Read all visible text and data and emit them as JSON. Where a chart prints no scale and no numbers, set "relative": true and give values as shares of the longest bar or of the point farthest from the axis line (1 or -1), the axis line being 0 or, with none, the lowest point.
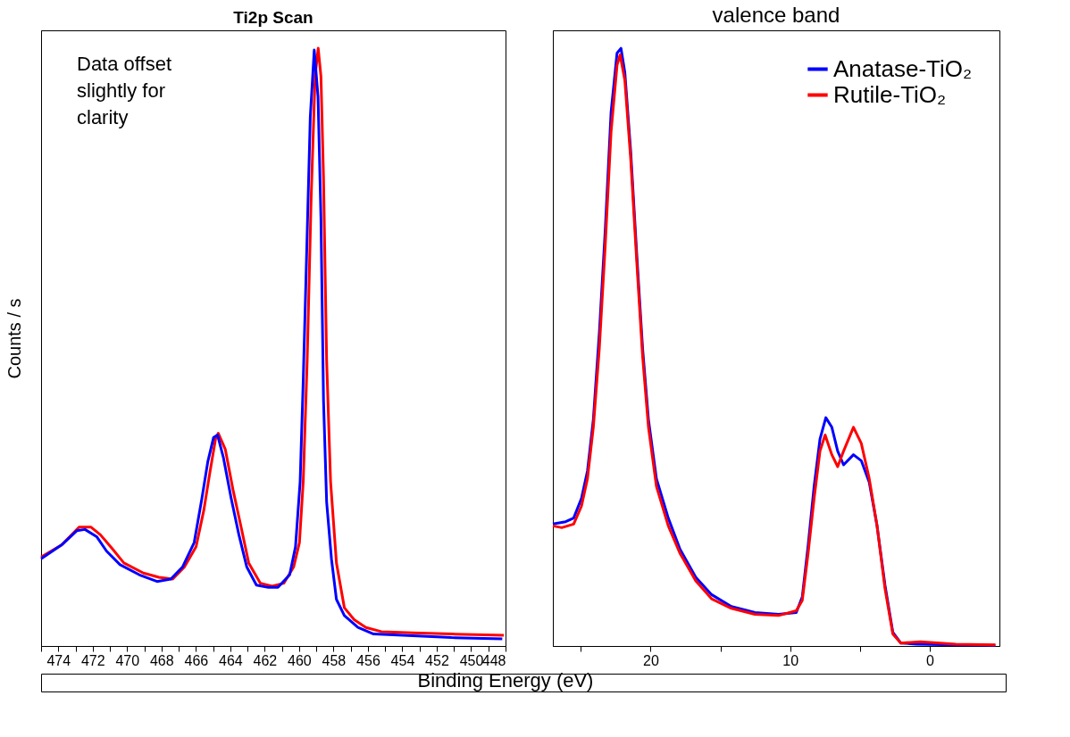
{
  "chart_data": [
    {
      "type": "line",
      "title": "Ti2p Scan",
      "ylabel": "Counts / s",
      "xlabel": "Binding Energy (eV)",
      "relative": true,
      "tick_labels": "x",
      "legend": false,
      "annotations": [
        "Data offset slightly for clarity"
      ],
      "xlim": [
        475,
        448
      ],
      "xticks": [
        {
          "value": 475,
          "label": null
        },
        474,
        {
          "value": 473,
          "label": null
        },
        472,
        {
          "value": 471,
          "label": null
        },
        470,
        {
          "value": 469,
          "label": null
        },
        468,
        {
          "value": 467,
          "label": null
        },
        466,
        {
          "value": 465,
          "label": null
        },
        464,
        {
          "value": 463,
          "label": null
        },
        462,
        {
          "value": 461,
          "label": null
        },
        460,
        {
          "value": 459,
          "label": null
        },
        458,
        {
          "value": 457,
          "label": null
        },
        456,
        {
          "value": 455,
          "label": null
        },
        454,
        {
          "value": 453,
          "label": null
        },
        452,
        {
          "value": 451,
          "label": null
        },
        450,
        {
          "value": 449,
          "label": null
        },
        448
      ],
      "series": [
        {
          "color": "#ff0000",
          "x": [
            475.0,
            473.81,
            472.79,
            472.11,
            471.55,
            470.87,
            470.19,
            469.05,
            468.15,
            467.35,
            466.67,
            465.99,
            465.54,
            465.2,
            464.86,
            464.7,
            464.29,
            463.84,
            463.38,
            462.93,
            462.25,
            461.57,
            460.89,
            460.32,
            459.98,
            459.76,
            459.53,
            459.3,
            459.07,
            458.89,
            458.73,
            458.58,
            458.4,
            458.17,
            457.83,
            457.37,
            456.8,
            456.12,
            455.22,
            453.41,
            451.14,
            448.1
          ],
          "values": [
            0.149,
            0.169,
            0.199,
            0.199,
            0.186,
            0.163,
            0.139,
            0.122,
            0.115,
            0.112,
            0.132,
            0.166,
            0.227,
            0.288,
            0.346,
            0.356,
            0.329,
            0.261,
            0.2,
            0.139,
            0.105,
            0.1,
            0.105,
            0.132,
            0.173,
            0.275,
            0.478,
            0.749,
            0.953,
            1.0,
            0.953,
            0.783,
            0.478,
            0.275,
            0.139,
            0.064,
            0.044,
            0.031,
            0.024,
            0.022,
            0.02,
            0.018
          ]
        },
        {
          "color": "#0000ff",
          "x": [
            475.0,
            473.81,
            472.91,
            472.45,
            471.77,
            471.2,
            470.41,
            469.28,
            468.26,
            467.46,
            466.78,
            466.1,
            465.65,
            465.31,
            464.97,
            464.74,
            464.4,
            463.95,
            463.5,
            463.04,
            462.48,
            461.79,
            461.23,
            460.55,
            460.21,
            459.94,
            459.76,
            459.57,
            459.35,
            459.12,
            458.9,
            458.73,
            458.58,
            458.4,
            458.12,
            457.83,
            457.37,
            456.58,
            455.67,
            453.41,
            451.14,
            448.19
          ],
          "values": [
            0.146,
            0.169,
            0.193,
            0.195,
            0.183,
            0.159,
            0.136,
            0.119,
            0.108,
            0.112,
            0.132,
            0.173,
            0.247,
            0.308,
            0.349,
            0.353,
            0.315,
            0.247,
            0.186,
            0.132,
            0.102,
            0.098,
            0.098,
            0.119,
            0.166,
            0.275,
            0.444,
            0.647,
            0.885,
            0.997,
            0.919,
            0.715,
            0.41,
            0.241,
            0.146,
            0.078,
            0.051,
            0.031,
            0.02,
            0.017,
            0.014,
            0.012
          ]
        }
      ]
    },
    {
      "type": "line",
      "title": "valence band",
      "relative": true,
      "tick_labels": "x",
      "legend": "top right",
      "xlim": [
        27,
        -5
      ],
      "xticks": [
        {
          "value": 25,
          "label": null
        },
        20,
        {
          "value": 15,
          "label": null
        },
        10,
        {
          "value": 5,
          "label": null
        },
        0
      ],
      "series": [
        {
          "name": "Anatase-TiO₂",
          "color": "#0000ff",
          "x": [
            27.0,
            26.08,
            25.51,
            24.95,
            24.52,
            24.1,
            23.67,
            23.25,
            22.83,
            22.4,
            22.12,
            21.84,
            21.42,
            20.99,
            20.57,
            20.15,
            19.58,
            18.73,
            17.89,
            16.76,
            15.63,
            14.21,
            12.52,
            10.83,
            9.56,
            9.13,
            8.71,
            8.28,
            7.86,
            7.44,
            7.01,
            6.59,
            6.17,
            5.46,
            4.9,
            4.33,
            3.77,
            3.2,
            2.64,
            2.07,
            0.94,
            -1.88,
            -4.71
          ],
          "values": [
            0.204,
            0.208,
            0.214,
            0.247,
            0.293,
            0.379,
            0.524,
            0.695,
            0.893,
            0.992,
            1.0,
            0.959,
            0.827,
            0.656,
            0.498,
            0.379,
            0.28,
            0.214,
            0.162,
            0.115,
            0.086,
            0.066,
            0.056,
            0.053,
            0.056,
            0.082,
            0.168,
            0.267,
            0.346,
            0.382,
            0.366,
            0.326,
            0.303,
            0.32,
            0.31,
            0.274,
            0.201,
            0.102,
            0.023,
            0.005,
            0.003,
            0.002,
            0.001
          ]
        },
        {
          "name": "Rutile-TiO₂",
          "color": "#ff0000",
          "x": [
            27.0,
            26.36,
            25.51,
            24.95,
            24.52,
            24.1,
            23.67,
            23.25,
            22.83,
            22.4,
            22.18,
            21.84,
            21.42,
            20.99,
            20.57,
            20.15,
            19.58,
            18.73,
            17.89,
            16.76,
            15.63,
            14.21,
            12.52,
            10.83,
            9.56,
            9.13,
            8.71,
            8.28,
            7.86,
            7.49,
            7.01,
            6.59,
            6.17,
            5.46,
            4.9,
            4.33,
            3.77,
            3.2,
            2.64,
            2.07,
            0.66,
            -1.88,
            -4.71
          ],
          "values": [
            0.201,
            0.198,
            0.204,
            0.234,
            0.28,
            0.366,
            0.498,
            0.669,
            0.86,
            0.972,
            0.989,
            0.946,
            0.814,
            0.643,
            0.485,
            0.366,
            0.267,
            0.201,
            0.155,
            0.109,
            0.079,
            0.063,
            0.053,
            0.051,
            0.059,
            0.076,
            0.155,
            0.247,
            0.326,
            0.353,
            0.32,
            0.3,
            0.326,
            0.366,
            0.339,
            0.28,
            0.201,
            0.096,
            0.02,
            0.005,
            0.007,
            0.003,
            0.002
          ]
        }
      ]
    }
  ]
}
